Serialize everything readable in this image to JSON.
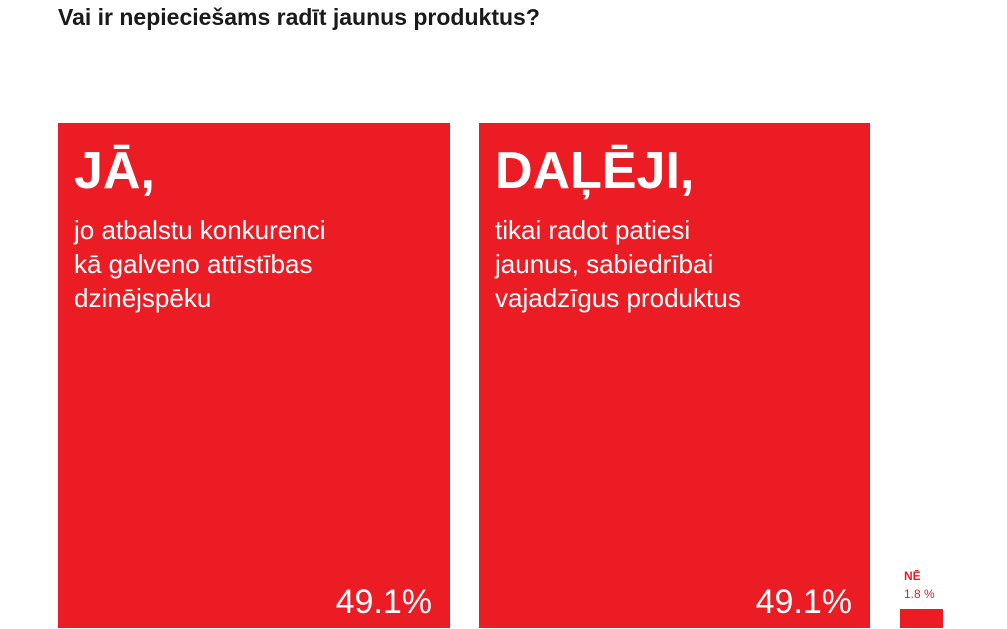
{
  "chart_data": {
    "type": "bar",
    "title": "Vai ir nepieciešams radīt jaunus produktus?",
    "categories": [
      "JĀ,",
      "DAĻĒJI,",
      "NĒ"
    ],
    "descriptions": [
      "jo atbalstu konkurenci kā galveno attīstības dzinējspēku",
      "tikai radot patiesi jaunus, sabiedrībai vajadzīgus produktus",
      null
    ],
    "values": [
      49.1,
      49.1,
      1.8
    ],
    "value_labels": [
      "49.1%",
      "49.1%",
      "1.8 %"
    ],
    "color": "#ec1c24"
  }
}
